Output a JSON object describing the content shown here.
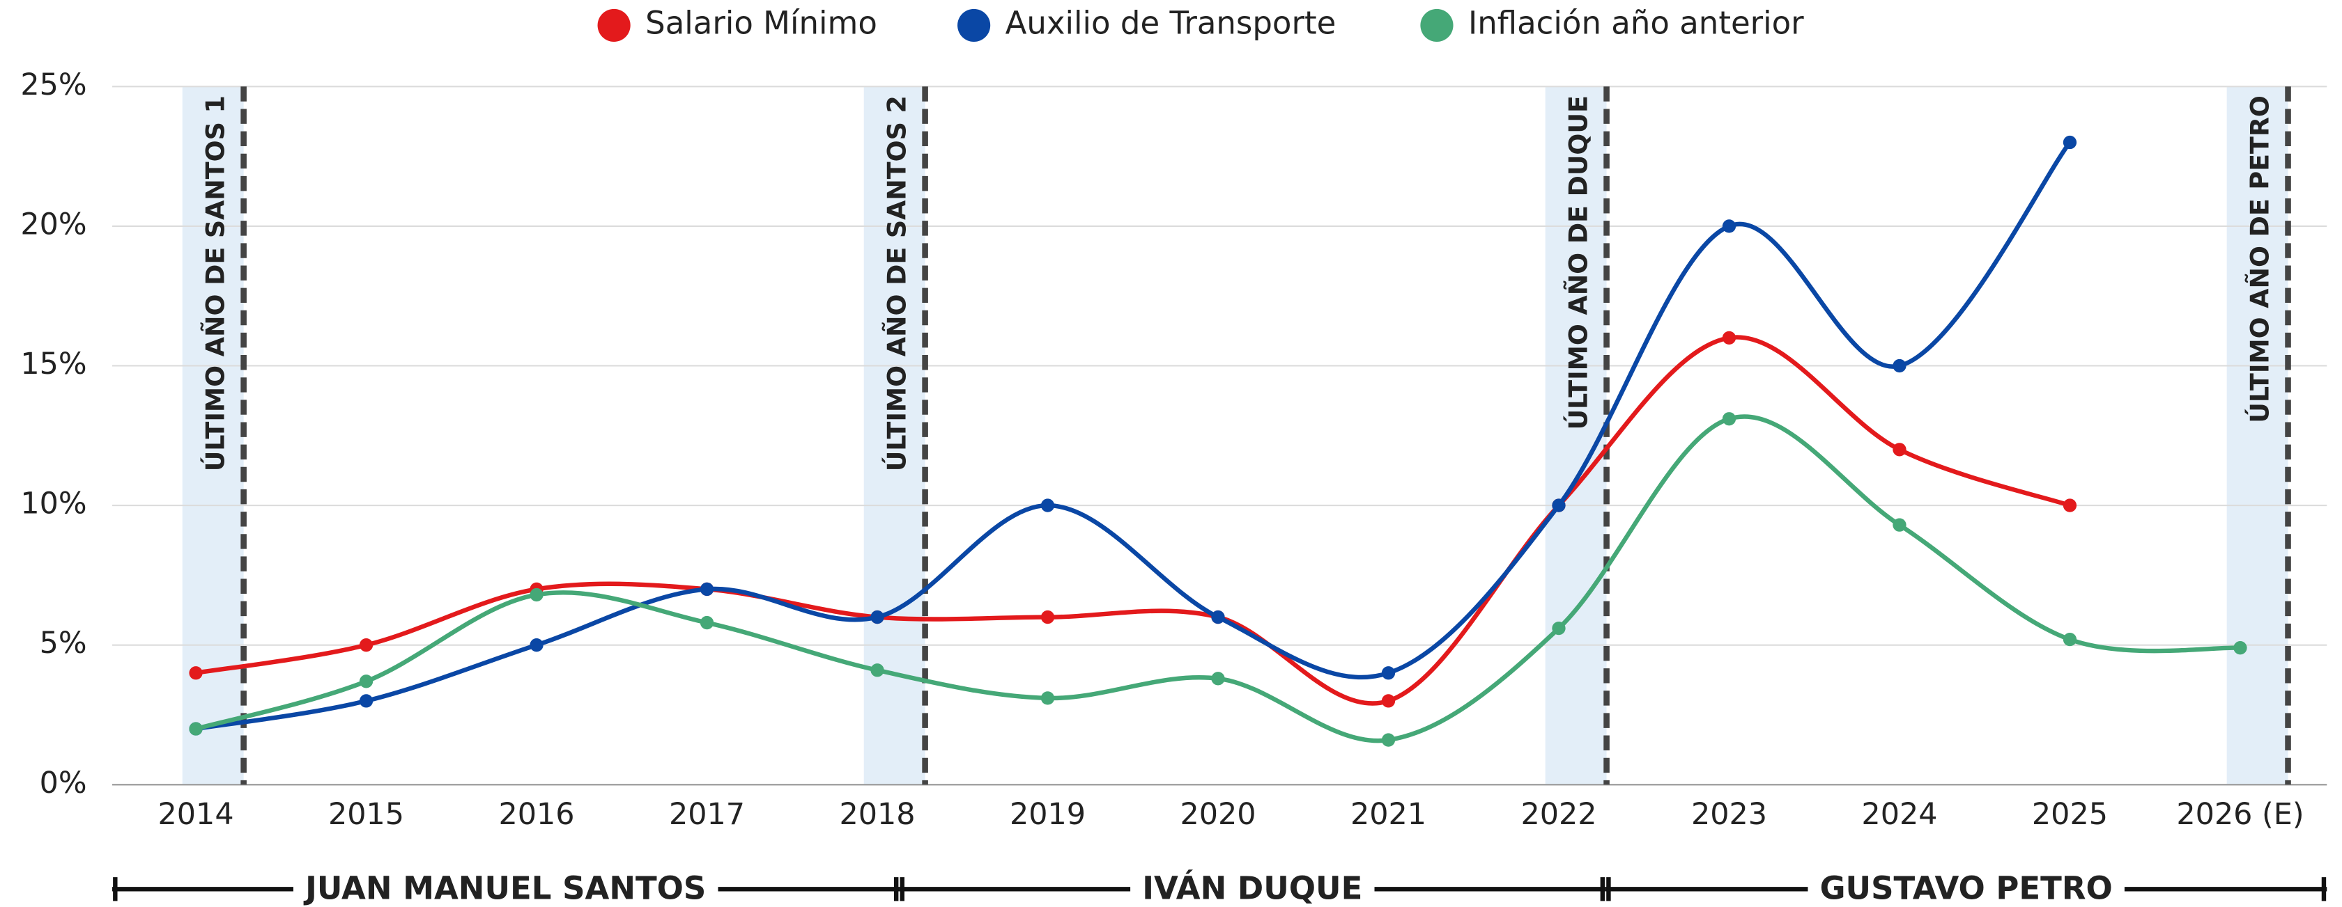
{
  "chart_data": {
    "type": "line",
    "categories": [
      "2014",
      "2015",
      "2016",
      "2017",
      "2018",
      "2019",
      "2020",
      "2021",
      "2022",
      "2023",
      "2024",
      "2025",
      "2026 (E)"
    ],
    "series": [
      {
        "name": "Salario Mínimo",
        "color": "#e31a1c",
        "values": [
          4,
          5,
          7,
          7,
          6,
          6,
          6,
          3,
          10,
          16,
          12,
          10,
          null
        ]
      },
      {
        "name": "Auxilio de Transporte",
        "color": "#0a47a5",
        "values": [
          2,
          3,
          5,
          7,
          6,
          10,
          6,
          4,
          10,
          20,
          15,
          23,
          null
        ]
      },
      {
        "name": "Inflación año anterior",
        "color": "#45a877",
        "values": [
          2,
          3.7,
          6.8,
          5.8,
          4.1,
          3.1,
          3.8,
          1.6,
          5.6,
          13.1,
          9.3,
          5.2,
          4.9
        ]
      }
    ],
    "ylim": [
      0,
      25
    ],
    "yticks": [
      {
        "value": 0,
        "label": "0%"
      },
      {
        "value": 5,
        "label": "5%"
      },
      {
        "value": 10,
        "label": "10%"
      },
      {
        "value": 15,
        "label": "15%"
      },
      {
        "value": 20,
        "label": "20%"
      },
      {
        "value": 25,
        "label": "25%"
      }
    ],
    "grid": true,
    "legend": "top",
    "annotations": [
      "ÚLTIMO AÑO DE SANTOS 1",
      "ÚLTIMO AÑO DE SANTOS 2",
      "ÚLTIMO AÑO DE DUQUE",
      "ÚLTIMO AÑO DE PETRO"
    ],
    "periods": [
      "JUAN MANUEL SANTOS",
      "IVÁN DUQUE",
      "GUSTAVO PETRO"
    ]
  }
}
